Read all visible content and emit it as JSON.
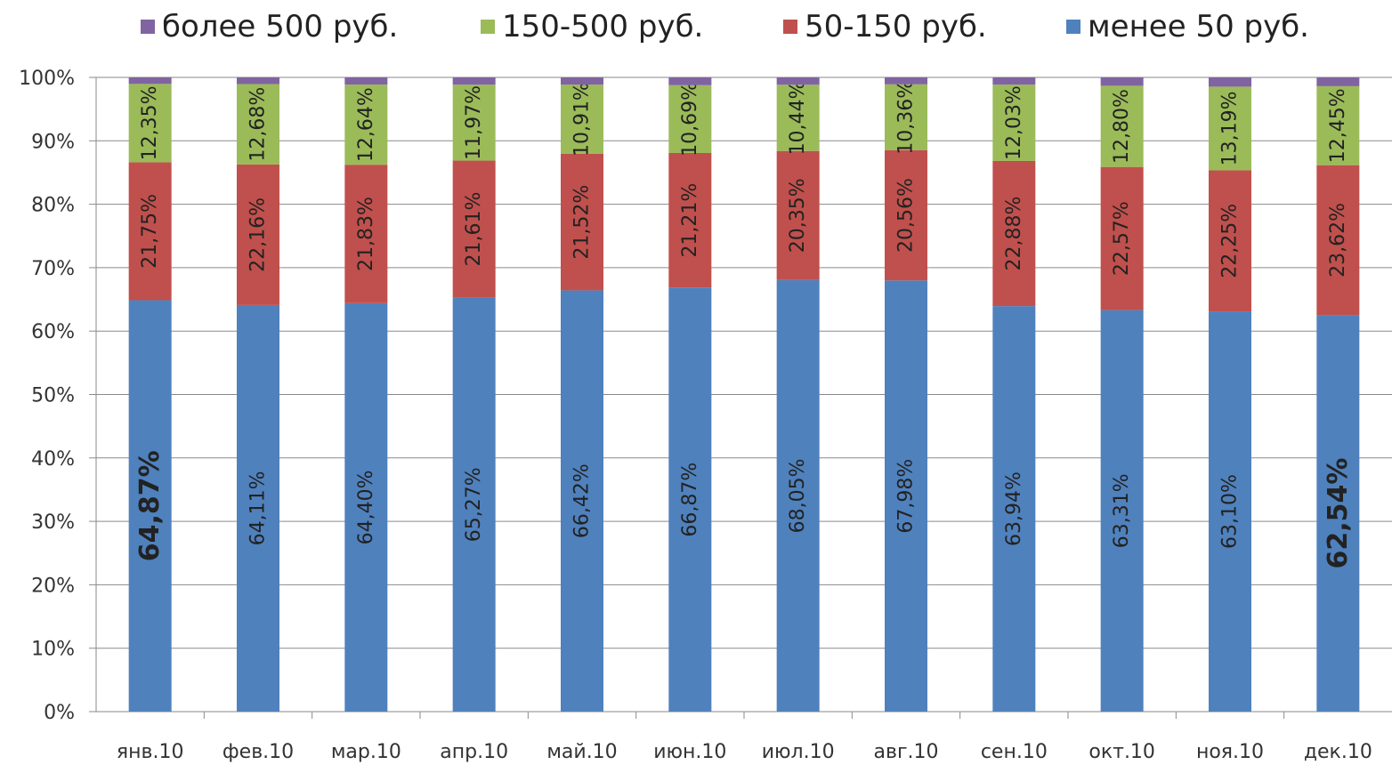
{
  "chart_data": {
    "type": "bar",
    "stacked": "percent",
    "categories": [
      "янв.10",
      "фев.10",
      "мар.10",
      "апр.10",
      "май.10",
      "июн.10",
      "июл.10",
      "авг.10",
      "сен.10",
      "окт.10",
      "ноя.10",
      "дек.10"
    ],
    "series": [
      {
        "name": "менее 50 руб.",
        "color": "#4F81BD",
        "values": [
          64.87,
          64.11,
          64.4,
          65.27,
          66.42,
          66.87,
          68.05,
          67.98,
          63.94,
          63.31,
          63.1,
          62.54
        ],
        "labels": [
          "64,87%",
          "64,11%",
          "64,40%",
          "65,27%",
          "66,42%",
          "66,87%",
          "68,05%",
          "67,98%",
          "63,94%",
          "63,31%",
          "63,10%",
          "62,54%"
        ],
        "bold_label_indices": [
          0,
          11
        ]
      },
      {
        "name": "50-150 руб.",
        "color": "#C0504D",
        "values": [
          21.75,
          22.16,
          21.83,
          21.61,
          21.52,
          21.21,
          20.35,
          20.56,
          22.88,
          22.57,
          22.25,
          23.62
        ],
        "labels": [
          "21,75%",
          "22,16%",
          "21,83%",
          "21,61%",
          "21,52%",
          "21,21%",
          "20,35%",
          "20,56%",
          "22,88%",
          "22,57%",
          "22,25%",
          "23,62%"
        ]
      },
      {
        "name": "150-500 руб.",
        "color": "#9BBB59",
        "values": [
          12.35,
          12.68,
          12.64,
          11.97,
          10.91,
          10.69,
          10.44,
          10.36,
          12.03,
          12.8,
          13.19,
          12.45
        ],
        "labels": [
          "12,35%",
          "12,68%",
          "12,64%",
          "11,97%",
          "10,91%",
          "10,69%",
          "10,44%",
          "10,36%",
          "12,03%",
          "12,80%",
          "13,19%",
          "12,45%"
        ]
      },
      {
        "name": "более 500 руб.",
        "color": "#8064A2",
        "values": [
          1.03,
          1.05,
          1.13,
          1.15,
          1.15,
          1.23,
          1.16,
          1.1,
          1.15,
          1.32,
          1.46,
          1.39
        ]
      }
    ],
    "legend_order": [
      3,
      2,
      1,
      0
    ],
    "legend_position": "top",
    "ylim": [
      0,
      100
    ],
    "yticks": [
      "0%",
      "10%",
      "20%",
      "30%",
      "40%",
      "50%",
      "60%",
      "70%",
      "80%",
      "90%",
      "100%"
    ],
    "grid": true,
    "title": "",
    "xlabel": "",
    "ylabel": ""
  }
}
